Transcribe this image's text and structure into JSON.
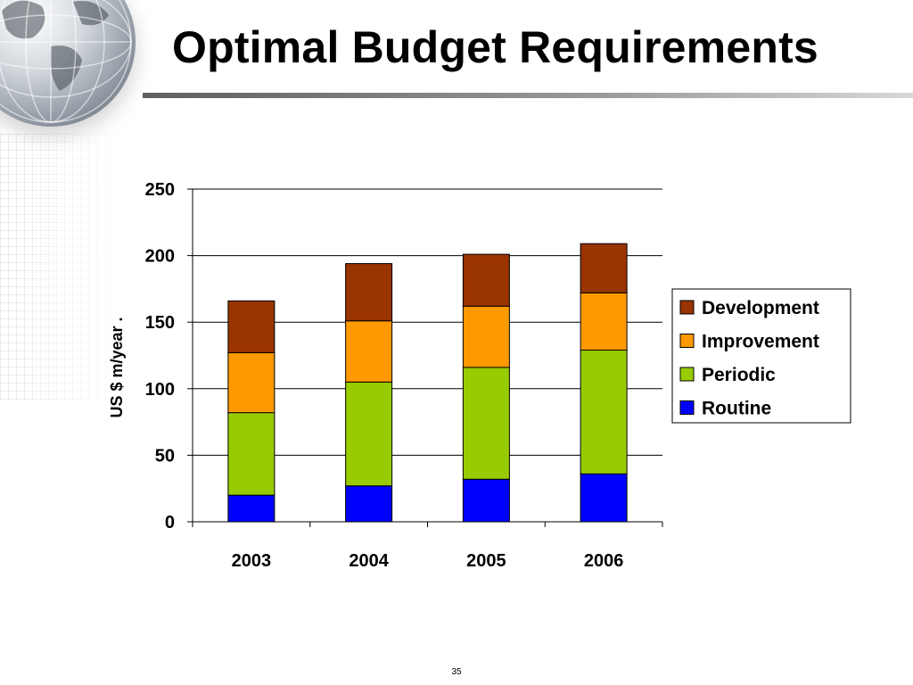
{
  "slide": {
    "title": "Optimal Budget Requirements",
    "page_number": "35"
  },
  "chart_data": {
    "type": "bar",
    "stacked": true,
    "categories": [
      "2003",
      "2004",
      "2005",
      "2006"
    ],
    "series": [
      {
        "name": "Routine",
        "values": [
          20,
          27,
          32,
          36
        ],
        "color": "#0000ff"
      },
      {
        "name": "Periodic",
        "values": [
          62,
          78,
          84,
          93
        ],
        "color": "#99cc00"
      },
      {
        "name": "Improvement",
        "values": [
          45,
          46,
          46,
          43
        ],
        "color": "#ff9900"
      },
      {
        "name": "Development",
        "values": [
          39,
          43,
          39,
          37
        ],
        "color": "#993300"
      }
    ],
    "title": "",
    "xlabel": "",
    "ylabel": "US $ m/year .",
    "ylim": [
      0,
      250
    ],
    "yticks": [
      "0",
      "50",
      "100",
      "150",
      "200",
      "250"
    ],
    "grid": true,
    "legend": "right",
    "legend_order": [
      "Development",
      "Improvement",
      "Periodic",
      "Routine"
    ]
  }
}
